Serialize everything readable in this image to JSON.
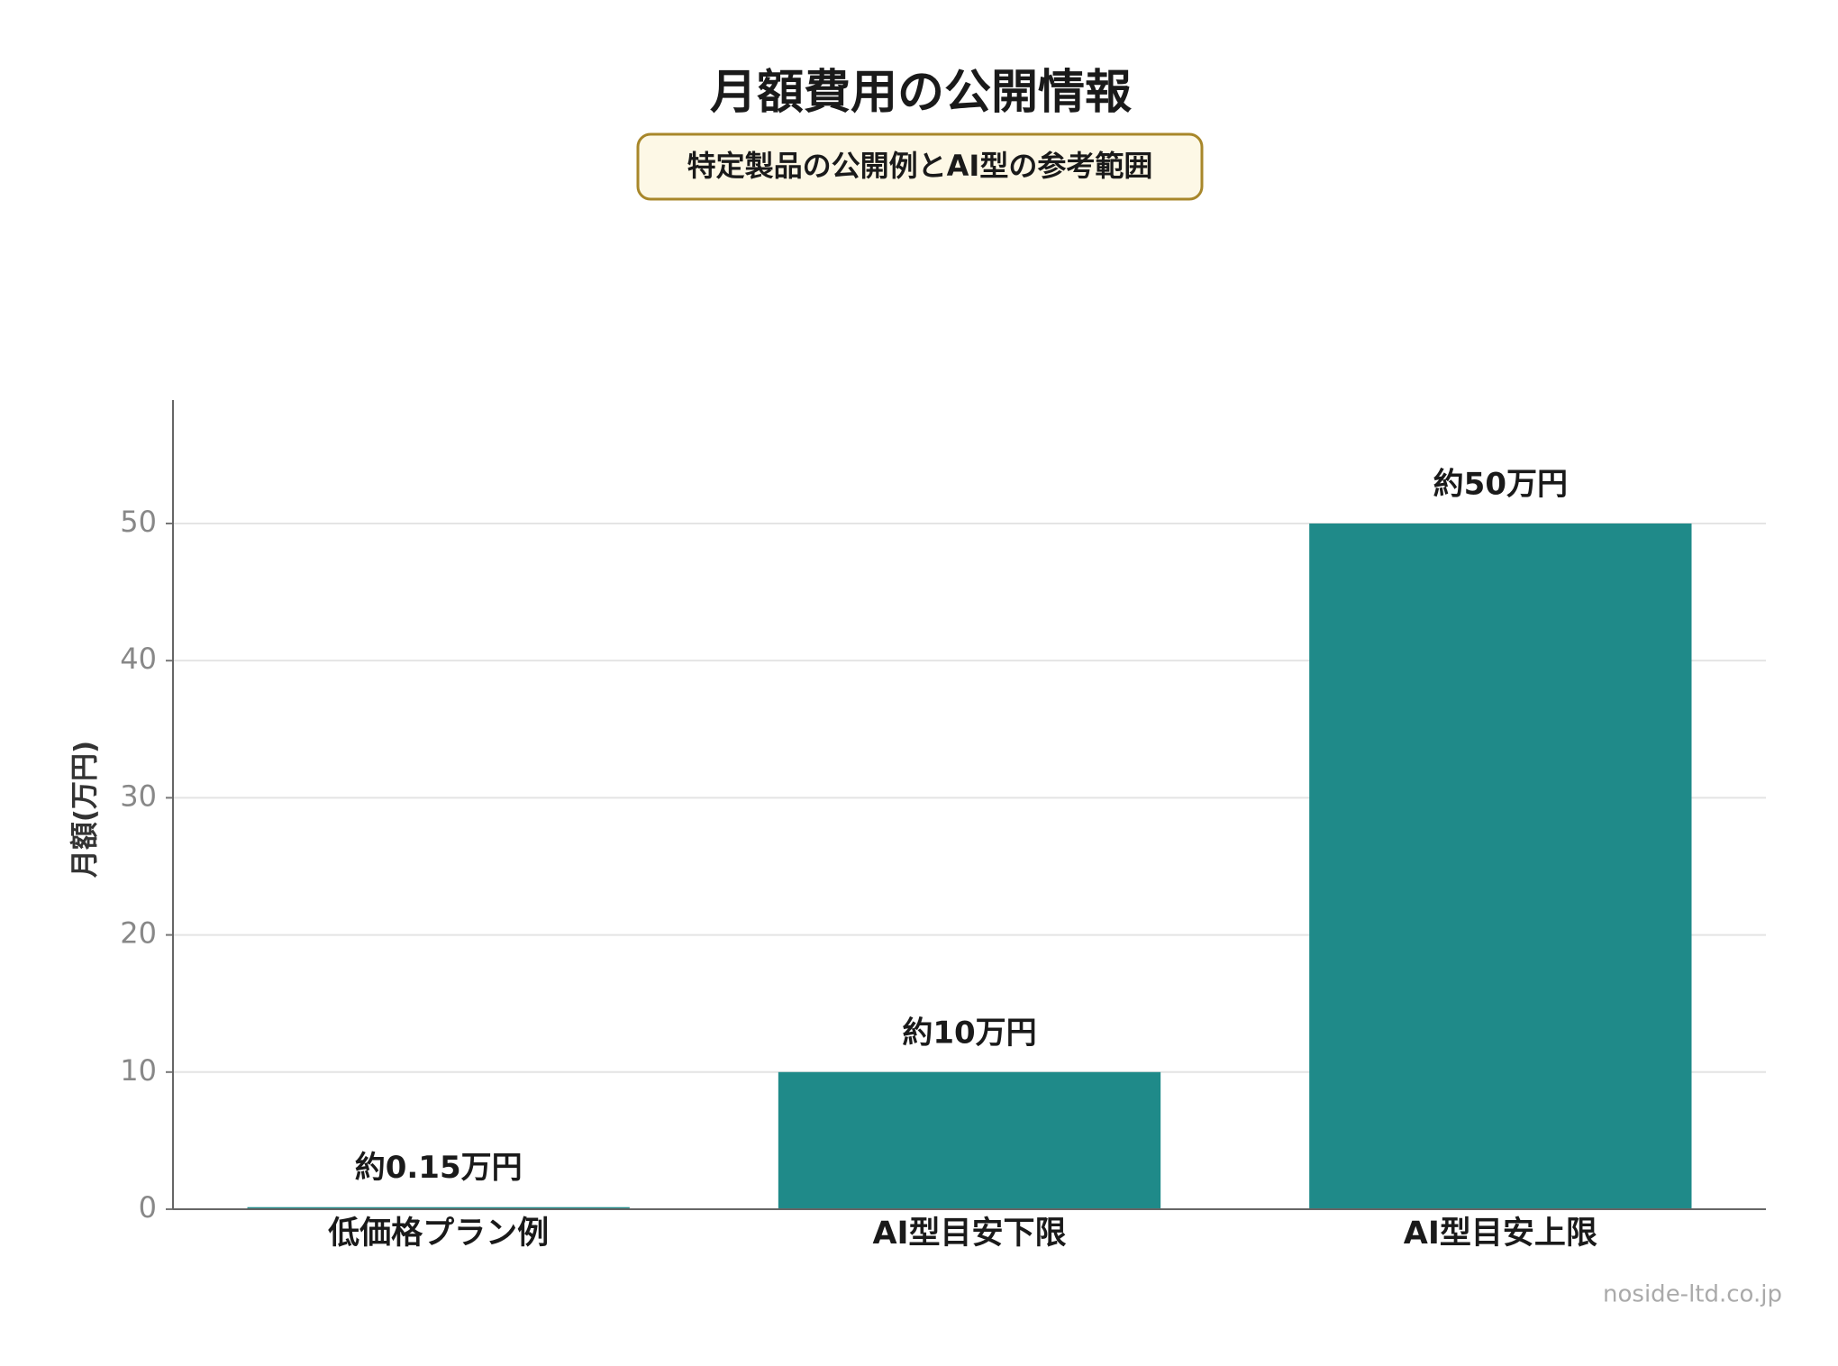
{
  "chart_data": {
    "type": "bar",
    "title": "月額費用の公開情報",
    "subtitle": "特定製品の公開例とAI型の参考範囲",
    "y_label": "月額(万円)",
    "categories": [
      "低価格プラン例",
      "AI型目安下限",
      "AI型目安上限"
    ],
    "values": [
      0.15,
      10,
      50
    ],
    "value_labels": [
      "約0.15万円",
      "約10万円",
      "約50万円"
    ],
    "color": "#1f8a89",
    "ylim": [
      0,
      59
    ],
    "yticks": [
      0,
      10,
      20,
      30,
      40,
      50
    ],
    "grid": true,
    "watermark": "noside-ltd.co.jp"
  }
}
